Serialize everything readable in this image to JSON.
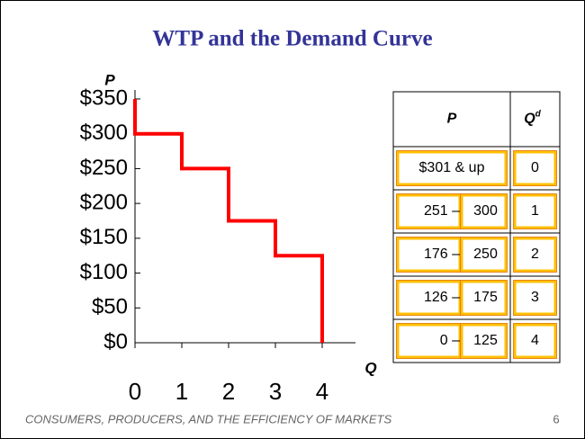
{
  "chart_data": {
    "type": "step",
    "title": "WTP and the Demand Curve",
    "y_label": "P",
    "x_label": "Q",
    "x": [
      0,
      0,
      1,
      1,
      2,
      2,
      3,
      3,
      4,
      4
    ],
    "values": [
      350,
      300,
      300,
      250,
      250,
      175,
      175,
      125,
      125,
      0
    ],
    "color": "#ff0000",
    "xlim": [
      0,
      4
    ],
    "xticks": [
      0,
      1,
      2,
      3,
      4
    ],
    "ylim": [
      0,
      350
    ],
    "yticks": [
      {
        "value": 0,
        "label": "$0"
      },
      {
        "value": 50,
        "label": "$50"
      },
      {
        "value": 100,
        "label": "$100"
      },
      {
        "value": 150,
        "label": "$150"
      },
      {
        "value": 200,
        "label": "$200"
      },
      {
        "value": 250,
        "label": "$250"
      },
      {
        "value": 300,
        "label": "$300"
      },
      {
        "value": 350,
        "label": "$350"
      }
    ]
  },
  "table": {
    "header": [
      "P",
      "Q"
    ],
    "header_superscript": "d",
    "rows": [
      {
        "p": [
          "$301 & up"
        ],
        "q": 0
      },
      {
        "p": [
          "251 –",
          "300"
        ],
        "q": 1
      },
      {
        "p": [
          "176 –",
          "250"
        ],
        "q": 2
      },
      {
        "p": [
          "126 –",
          "175"
        ],
        "q": 3
      },
      {
        "p": [
          "0 –",
          "125"
        ],
        "q": 4
      }
    ]
  },
  "footer": {
    "text": "CONSUMERS, PRODUCERS, AND THE EFFICIENCY OF MARKETS",
    "page": 6
  }
}
